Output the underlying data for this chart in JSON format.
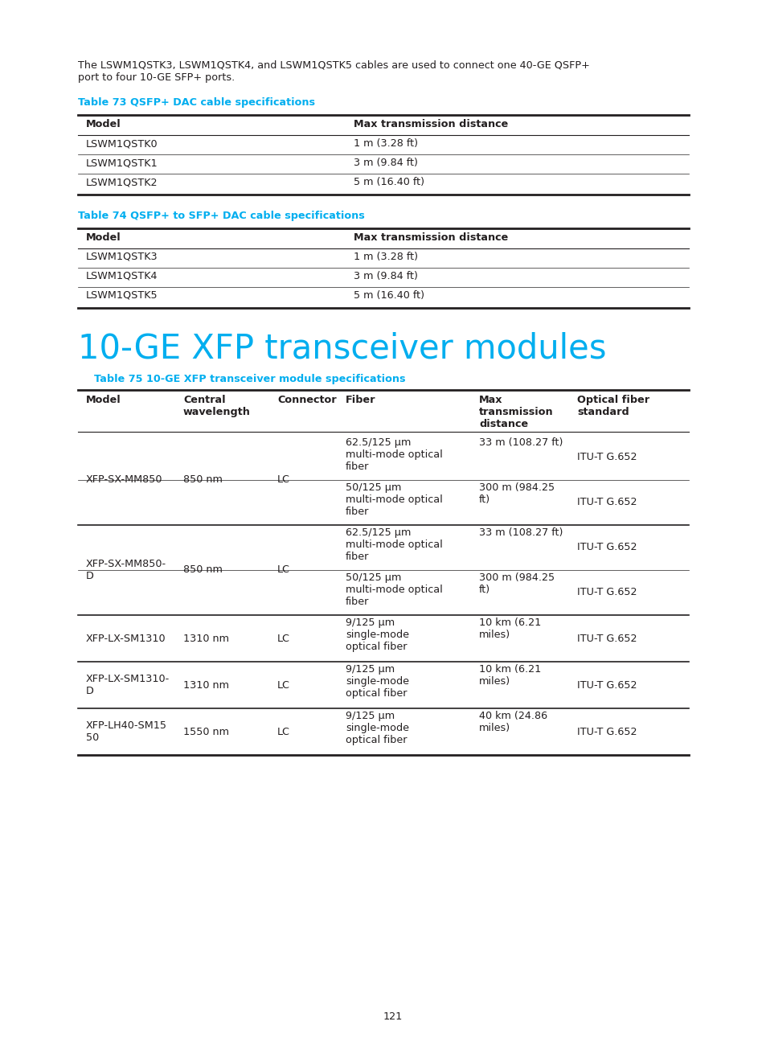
{
  "page_bg": "#ffffff",
  "text_color": "#231f20",
  "cyan_color": "#00aeef",
  "intro_text": "The LSWM1QSTK3, LSWM1QSTK4, and LSWM1QSTK5 cables are used to connect one 40-GE QSFP+\nport to four 10-GE SFP+ ports.",
  "table73_title": "Table 73 QSFP+ DAC cable specifications",
  "table73_rows": [
    [
      "LSWM1QSTK0",
      "1 m (3.28 ft)"
    ],
    [
      "LSWM1QSTK1",
      "3 m (9.84 ft)"
    ],
    [
      "LSWM1QSTK2",
      "5 m (16.40 ft)"
    ]
  ],
  "table74_title": "Table 74 QSFP+ to SFP+ DAC cable specifications",
  "table74_rows": [
    [
      "LSWM1QSTK3",
      "1 m (3.28 ft)"
    ],
    [
      "LSWM1QSTK4",
      "3 m (9.84 ft)"
    ],
    [
      "LSWM1QSTK5",
      "5 m (16.40 ft)"
    ]
  ],
  "section_title": "10-GE XFP transceiver modules",
  "table75_title": "Table 75 10-GE XFP transceiver module specifications",
  "table75_double_rows": [
    {
      "model": "XFP-SX-MM850",
      "wave": "850 nm",
      "conn": "LC",
      "fiber1": "62.5/125 μm\nmulti-mode optical\nfiber",
      "dist1": "33 m (108.27 ft)",
      "std1": "ITU-T G.652",
      "fiber2": "50/125 μm\nmulti-mode optical\nfiber",
      "dist2": "300 m (984.25\nft)",
      "std2": "ITU-T G.652"
    },
    {
      "model": "XFP-SX-MM850-\nD",
      "wave": "850 nm",
      "conn": "LC",
      "fiber1": "62.5/125 μm\nmulti-mode optical\nfiber",
      "dist1": "33 m (108.27 ft)",
      "std1": "ITU-T G.652",
      "fiber2": "50/125 μm\nmulti-mode optical\nfiber",
      "dist2": "300 m (984.25\nft)",
      "std2": "ITU-T G.652"
    }
  ],
  "table75_single_rows": [
    {
      "model": "XFP-LX-SM1310",
      "wave": "1310 nm",
      "conn": "LC",
      "fiber": "9/125 μm\nsingle-mode\noptical fiber",
      "dist": "10 km (6.21\nmiles)",
      "std": "ITU-T G.652"
    },
    {
      "model": "XFP-LX-SM1310-\nD",
      "wave": "1310 nm",
      "conn": "LC",
      "fiber": "9/125 μm\nsingle-mode\noptical fiber",
      "dist": "10 km (6.21\nmiles)",
      "std": "ITU-T G.652"
    },
    {
      "model": "XFP-LH40-SM15\n50",
      "wave": "1550 nm",
      "conn": "LC",
      "fiber": "9/125 μm\nsingle-mode\noptical fiber",
      "dist": "40 km (24.86\nmiles)",
      "std": "ITU-T G.652"
    }
  ],
  "page_number": "121"
}
